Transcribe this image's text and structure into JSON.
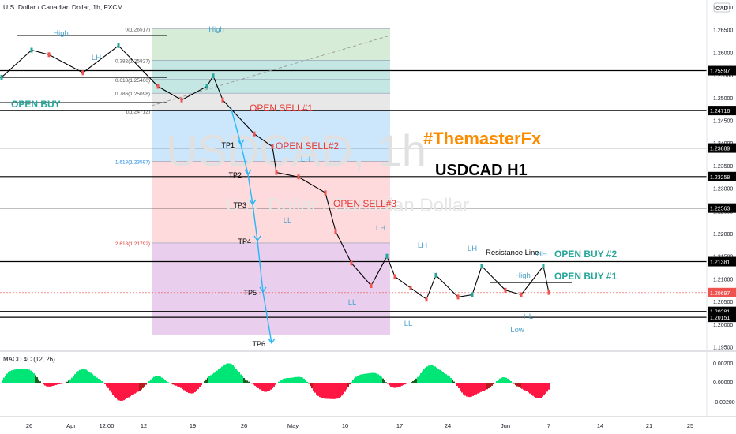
{
  "header": {
    "symbol_title": "U.S. Dollar / Canadian Dollar, 1h, FXCM",
    "currency_badge": "CAD"
  },
  "watermark": {
    "ticker": "USDCAD, 1h",
    "name": "U.S. Dollar / Canadian Dollar"
  },
  "annotations": {
    "brand": "#ThemasterFx",
    "headline": "USDCAD H1",
    "open_buy": "OPEN BUY",
    "open_sell_1": "OPEN SELL#1",
    "open_sell_2": "OPEN SELL#2",
    "open_sell_3": "OPEN SELL#3",
    "open_buy_1": "OPEN BUY #1",
    "open_buy_2": "OPEN BUY #2",
    "resistance_line": "Resistance Line",
    "swing_labels": [
      "High",
      "High",
      "LH",
      "LH",
      "LH",
      "LH",
      "LH",
      "LL",
      "LL",
      "LL",
      "LL",
      "HH",
      "HL",
      "High",
      "Low"
    ],
    "tp_labels": [
      "TP1",
      "TP2",
      "TP3",
      "TP4",
      "TP5",
      "TP6"
    ]
  },
  "chart_data": [
    {
      "type": "line",
      "title": "U.S. Dollar / Canadian Dollar, 1h, FXCM",
      "series": [
        {
          "name": "USDCAD",
          "x": [
            "Mar 25",
            "Mar 29",
            "Apr 1",
            "Apr 5",
            "Apr 8",
            "Apr 12",
            "Apr 15",
            "Apr 19",
            "Apr 21",
            "Apr 22",
            "Apr 26",
            "Apr 29",
            "Apr 30",
            "May 3",
            "May 5",
            "May 7",
            "May 10",
            "May 12",
            "May 14",
            "May 15",
            "May 17",
            "May 19",
            "May 21",
            "May 24",
            "May 26",
            "May 28",
            "May 31",
            "Jun 2",
            "Jun 4",
            "Jun 7"
          ],
          "values": [
            1.2545,
            1.2605,
            1.2595,
            1.2555,
            1.2615,
            1.2525,
            1.2495,
            1.2525,
            1.2548,
            1.2495,
            1.242,
            1.2392,
            1.2335,
            1.2325,
            1.229,
            1.2205,
            1.2135,
            1.2085,
            1.215,
            1.2105,
            1.208,
            1.2055,
            1.2108,
            1.206,
            1.2065,
            1.2128,
            1.2075,
            1.2065,
            1.2128,
            1.207
          ]
        }
      ],
      "x_ticks": [
        "26",
        "Apr",
        "12:00",
        "12",
        "19",
        "26",
        "May",
        "10",
        "17",
        "24",
        "Jun",
        "7",
        "14",
        "21",
        "25"
      ],
      "y_ticks": [
        "1.27000",
        "1.26500",
        "1.26000",
        "1.25500",
        "1.25000",
        "1.24500",
        "1.24000",
        "1.23500",
        "1.23000",
        "1.22500",
        "1.22000",
        "1.21500",
        "1.21000",
        "1.20500",
        "1.20000",
        "1.19500"
      ],
      "ylim": [
        1.1935,
        1.2725
      ],
      "current_price": "1.20697",
      "horizontal_levels": [
        {
          "price": 1.25597,
          "label": "1.25597"
        },
        {
          "price": 1.24716,
          "label": "1.24716"
        },
        {
          "price": 1.23889,
          "label": "1.23889"
        },
        {
          "price": 1.23258,
          "label": "1.23258"
        },
        {
          "price": 1.22563,
          "label": "1.22563"
        },
        {
          "price": 1.21381,
          "label": "1.21381"
        },
        {
          "price": 1.20281,
          "label": "1.20281"
        },
        {
          "price": 1.20151,
          "label": "1.20151"
        }
      ],
      "fibonacci_levels": [
        {
          "label": "0(1.26517)",
          "price": 1.26517,
          "color": "#c8e6c9"
        },
        {
          "label": "0.382(1.25827)",
          "price": 1.25827,
          "color": "#b2dfdb"
        },
        {
          "label": "0.618(1.25400)",
          "price": 1.254,
          "color": "#b2dfdb"
        },
        {
          "label": "0.786(1.25098)",
          "price": 1.25098,
          "color": "#e0e0e0"
        },
        {
          "label": "1(1.24712)",
          "price": 1.24712,
          "color": "#bbdefb"
        },
        {
          "label": "1.618(1.23597)",
          "price": 1.23597,
          "color": "#ffcdd2"
        },
        {
          "label": "2.618(1.21792)",
          "price": 1.21792,
          "color": "#e1bee7"
        }
      ],
      "grid": false
    },
    {
      "type": "bar",
      "title": "MACD 4C (12, 26)",
      "y_ticks": [
        "0.00200",
        "0.00000",
        "-0.00200"
      ],
      "ylim": [
        -0.0032,
        0.0032
      ],
      "colors": [
        "#00e676",
        "#1b5e20",
        "#ff1744",
        "#b71c1c"
      ]
    }
  ],
  "colors": {
    "up": "#26a69a",
    "down": "#ef5350",
    "line": "#000000",
    "sell_text": "#e53935",
    "buy_text": "#26a69a",
    "tp_arrow": "#29b6f6",
    "swing_text": "#4da3c9",
    "brand_text": "#fb8c00"
  }
}
